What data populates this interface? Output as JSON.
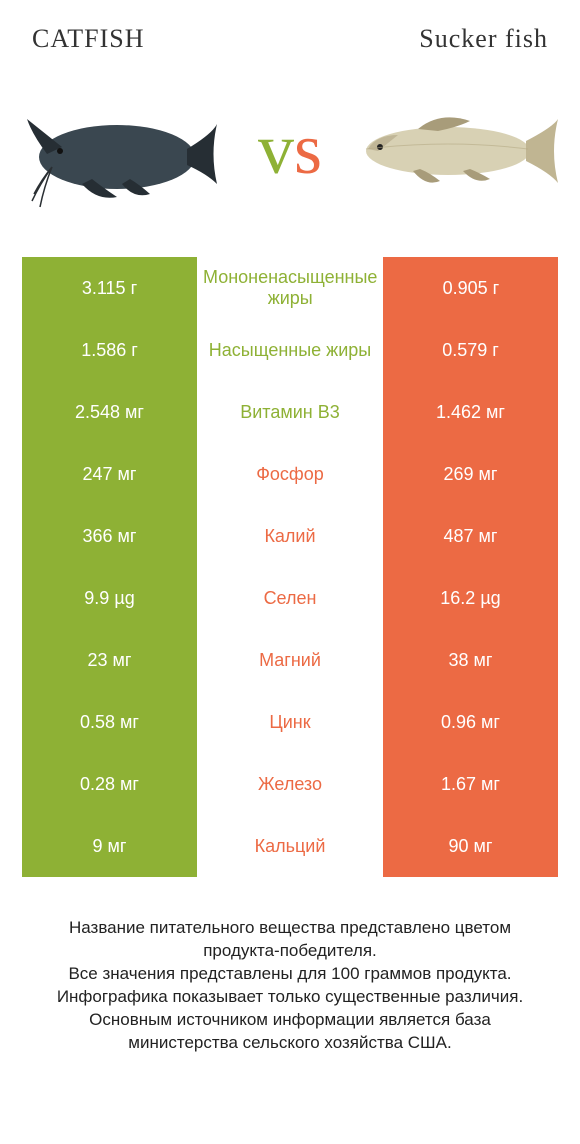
{
  "title_left": "CATFISH",
  "title_right": "Sucker fish",
  "vs": {
    "v": "v",
    "s": "s"
  },
  "colors": {
    "green": "#8eb135",
    "orange": "#ec6a44",
    "catfish_body": "#3a4750",
    "catfish_dark": "#262e34",
    "sucker_body": "#d8d1b4",
    "sucker_dark": "#a89c7a",
    "sucker_tail": "#c0b592"
  },
  "rows": [
    {
      "left": "3.115 г",
      "mid": "Мононенасыщенные жиры",
      "right": "0.905 г",
      "winner": "left"
    },
    {
      "left": "1.586 г",
      "mid": "Насыщенные жиры",
      "right": "0.579 г",
      "winner": "left"
    },
    {
      "left": "2.548 мг",
      "mid": "Витамин B3",
      "right": "1.462 мг",
      "winner": "left"
    },
    {
      "left": "247 мг",
      "mid": "Фосфор",
      "right": "269 мг",
      "winner": "right"
    },
    {
      "left": "366 мг",
      "mid": "Калий",
      "right": "487 мг",
      "winner": "right"
    },
    {
      "left": "9.9 µg",
      "mid": "Селен",
      "right": "16.2 µg",
      "winner": "right"
    },
    {
      "left": "23 мг",
      "mid": "Магний",
      "right": "38 мг",
      "winner": "right"
    },
    {
      "left": "0.58 мг",
      "mid": "Цинк",
      "right": "0.96 мг",
      "winner": "right"
    },
    {
      "left": "0.28 мг",
      "mid": "Железо",
      "right": "1.67 мг",
      "winner": "right"
    },
    {
      "left": "9 мг",
      "mid": "Кальций",
      "right": "90 мг",
      "winner": "right"
    }
  ],
  "footer": [
    "Название питательного вещества представлено цветом продукта-победителя.",
    "Все значения представлены для 100 граммов продукта.",
    "Инфографика показывает только существенные различия.",
    "Основным источником информации является база министерства сельского хозяйства США."
  ]
}
